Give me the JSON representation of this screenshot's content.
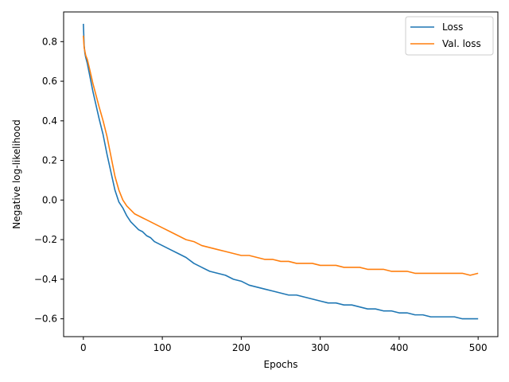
{
  "chart_data": {
    "type": "line",
    "xlabel": "Epochs",
    "ylabel": "Negative log-likelihood",
    "xlim": [
      -25,
      525
    ],
    "ylim": [
      -0.69,
      0.95
    ],
    "xticks": [
      0,
      100,
      200,
      300,
      400,
      500
    ],
    "yticks": [
      -0.6,
      -0.4,
      -0.2,
      0.0,
      0.2,
      0.4,
      0.6,
      0.8
    ],
    "grid": false,
    "legend": "top-right",
    "series": [
      {
        "name": "Loss",
        "color": "#1f77b4",
        "x": [
          0,
          1,
          2,
          3,
          5,
          8,
          12,
          16,
          20,
          25,
          30,
          35,
          40,
          45,
          50,
          55,
          60,
          65,
          70,
          75,
          80,
          85,
          90,
          100,
          110,
          120,
          130,
          140,
          150,
          160,
          170,
          180,
          190,
          200,
          210,
          220,
          230,
          240,
          250,
          260,
          270,
          280,
          290,
          300,
          310,
          320,
          330,
          340,
          350,
          360,
          370,
          380,
          390,
          400,
          410,
          420,
          430,
          440,
          450,
          460,
          470,
          480,
          490,
          500
        ],
        "y": [
          0.89,
          0.78,
          0.74,
          0.72,
          0.69,
          0.63,
          0.55,
          0.48,
          0.41,
          0.33,
          0.23,
          0.14,
          0.05,
          -0.01,
          -0.04,
          -0.08,
          -0.11,
          -0.13,
          -0.15,
          -0.16,
          -0.18,
          -0.19,
          -0.21,
          -0.23,
          -0.25,
          -0.27,
          -0.29,
          -0.32,
          -0.34,
          -0.36,
          -0.37,
          -0.38,
          -0.4,
          -0.41,
          -0.43,
          -0.44,
          -0.45,
          -0.46,
          -0.47,
          -0.48,
          -0.48,
          -0.49,
          -0.5,
          -0.51,
          -0.52,
          -0.52,
          -0.53,
          -0.53,
          -0.54,
          -0.55,
          -0.55,
          -0.56,
          -0.56,
          -0.57,
          -0.57,
          -0.58,
          -0.58,
          -0.59,
          -0.59,
          -0.59,
          -0.59,
          -0.6,
          -0.6,
          -0.6
        ]
      },
      {
        "name": "Val. loss",
        "color": "#ff7f0e",
        "x": [
          0,
          1,
          2,
          3,
          5,
          8,
          12,
          16,
          20,
          25,
          30,
          35,
          40,
          45,
          50,
          55,
          60,
          65,
          70,
          75,
          80,
          85,
          90,
          100,
          110,
          120,
          130,
          140,
          150,
          160,
          170,
          180,
          190,
          200,
          210,
          220,
          230,
          240,
          250,
          260,
          270,
          280,
          290,
          300,
          310,
          320,
          330,
          340,
          350,
          360,
          370,
          380,
          390,
          400,
          410,
          420,
          430,
          440,
          450,
          460,
          470,
          480,
          490,
          500
        ],
        "y": [
          0.83,
          0.77,
          0.75,
          0.73,
          0.71,
          0.66,
          0.59,
          0.53,
          0.47,
          0.4,
          0.32,
          0.22,
          0.12,
          0.05,
          0.0,
          -0.03,
          -0.05,
          -0.07,
          -0.08,
          -0.09,
          -0.1,
          -0.11,
          -0.12,
          -0.14,
          -0.16,
          -0.18,
          -0.2,
          -0.21,
          -0.23,
          -0.24,
          -0.25,
          -0.26,
          -0.27,
          -0.28,
          -0.28,
          -0.29,
          -0.3,
          -0.3,
          -0.31,
          -0.31,
          -0.32,
          -0.32,
          -0.32,
          -0.33,
          -0.33,
          -0.33,
          -0.34,
          -0.34,
          -0.34,
          -0.35,
          -0.35,
          -0.35,
          -0.36,
          -0.36,
          -0.36,
          -0.37,
          -0.37,
          -0.37,
          -0.37,
          -0.37,
          -0.37,
          -0.37,
          -0.38,
          -0.37
        ]
      }
    ]
  }
}
